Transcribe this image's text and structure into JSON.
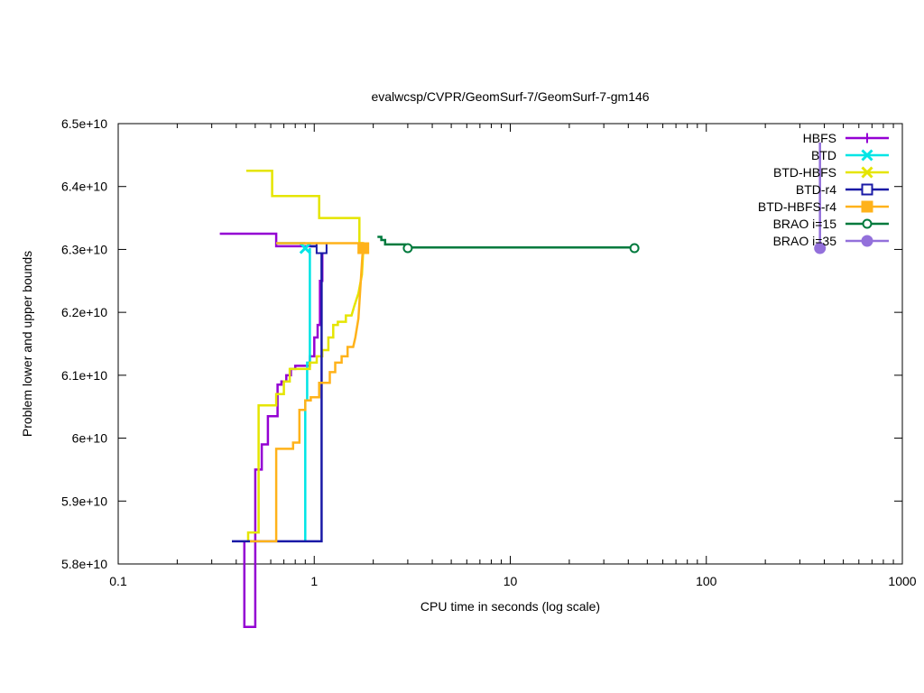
{
  "chart_data": {
    "type": "line",
    "title": "evalwcsp/CVPR/GeomSurf-7/GeomSurf-7-gm146",
    "xlabel": "CPU time in seconds (log scale)",
    "ylabel": "Problem lower and upper bounds",
    "x_scale": "log",
    "xlim": [
      0.1,
      1000
    ],
    "ylim": [
      58000000000,
      65000000000
    ],
    "x_ticks": [
      0.1,
      1,
      10,
      100,
      1000
    ],
    "x_tick_labels": [
      "0.1",
      "1",
      "10",
      "100",
      "1000"
    ],
    "y_ticks": [
      58000000000,
      59000000000,
      60000000000,
      61000000000,
      62000000000,
      63000000000,
      64000000000,
      65000000000
    ],
    "y_tick_labels": [
      "5.8e+10",
      "5.9e+10",
      "6e+10",
      "6.1e+10",
      "6.2e+10",
      "6.3e+10",
      "6.4e+10",
      "6.5e+10"
    ],
    "grid": false,
    "legend_position": "top-right",
    "series": [
      {
        "name": "HBFS",
        "color": "#9400d3",
        "marker": "plus",
        "upper": [
          [
            0.33,
            63250000000
          ],
          [
            0.64,
            63250000000
          ],
          [
            0.64,
            63050000000
          ],
          [
            1.1,
            63050000000
          ]
        ],
        "lower": [
          [
            0.44,
            58360000000
          ],
          [
            0.44,
            57000000000
          ],
          [
            0.5,
            57000000000
          ],
          [
            0.5,
            59500000000
          ],
          [
            0.54,
            59500000000
          ],
          [
            0.54,
            59900000000
          ],
          [
            0.58,
            59900000000
          ],
          [
            0.58,
            60350000000
          ],
          [
            0.65,
            60350000000
          ],
          [
            0.65,
            60850000000
          ],
          [
            0.68,
            60850000000
          ],
          [
            0.68,
            60900000000
          ],
          [
            0.72,
            60900000000
          ],
          [
            0.72,
            61000000000
          ],
          [
            0.76,
            61000000000
          ],
          [
            0.76,
            61100000000
          ],
          [
            0.8,
            61100000000
          ],
          [
            0.8,
            61150000000
          ],
          [
            0.95,
            61150000000
          ],
          [
            0.95,
            61300000000
          ],
          [
            1.0,
            61300000000
          ],
          [
            1.0,
            61600000000
          ],
          [
            1.04,
            61600000000
          ],
          [
            1.04,
            61800000000
          ],
          [
            1.07,
            61800000000
          ],
          [
            1.07,
            62500000000
          ],
          [
            1.1,
            62500000000
          ],
          [
            1.1,
            63020000000
          ]
        ],
        "marker_points": [
          [
            1.1,
            63020000000
          ]
        ]
      },
      {
        "name": "BTD",
        "color": "#00e5e5",
        "marker": "cross",
        "upper": [
          [
            0.64,
            63100000000
          ],
          [
            0.9,
            63100000000
          ]
        ],
        "lower": [
          [
            0.9,
            58360000000
          ],
          [
            0.9,
            60600000000
          ],
          [
            0.92,
            60600000000
          ],
          [
            0.92,
            61200000000
          ],
          [
            0.95,
            61200000000
          ],
          [
            0.95,
            63020000000
          ]
        ],
        "marker_points": [
          [
            0.9,
            63020000000
          ]
        ]
      },
      {
        "name": "BTD-HBFS",
        "color": "#e5e500",
        "marker": "cross",
        "upper": [
          [
            0.45,
            64250000000
          ],
          [
            0.61,
            64250000000
          ],
          [
            0.61,
            63850000000
          ],
          [
            1.06,
            63850000000
          ],
          [
            1.06,
            63500000000
          ],
          [
            1.7,
            63500000000
          ],
          [
            1.7,
            63100000000
          ],
          [
            1.8,
            63100000000
          ]
        ],
        "lower": [
          [
            0.46,
            58360000000
          ],
          [
            0.46,
            58500000000
          ],
          [
            0.52,
            58500000000
          ],
          [
            0.52,
            60520000000
          ],
          [
            0.64,
            60520000000
          ],
          [
            0.64,
            60700000000
          ],
          [
            0.7,
            60700000000
          ],
          [
            0.7,
            60900000000
          ],
          [
            0.75,
            60900000000
          ],
          [
            0.75,
            61100000000
          ],
          [
            0.95,
            61100000000
          ],
          [
            0.95,
            61200000000
          ],
          [
            1.03,
            61200000000
          ],
          [
            1.03,
            61300000000
          ],
          [
            1.1,
            61300000000
          ],
          [
            1.1,
            61400000000
          ],
          [
            1.18,
            61400000000
          ],
          [
            1.18,
            61600000000
          ],
          [
            1.25,
            61600000000
          ],
          [
            1.25,
            61800000000
          ],
          [
            1.32,
            61800000000
          ],
          [
            1.32,
            61850000000
          ],
          [
            1.45,
            61850000000
          ],
          [
            1.45,
            61950000000
          ],
          [
            1.55,
            61950000000
          ],
          [
            1.6,
            62100000000
          ],
          [
            1.68,
            62300000000
          ],
          [
            1.75,
            62600000000
          ],
          [
            1.78,
            63020000000
          ]
        ],
        "marker_points": [
          [
            1.78,
            63020000000
          ]
        ]
      },
      {
        "name": "BTD-r4",
        "color": "#1a1aa6",
        "marker": "square",
        "upper": [
          [
            0.95,
            63050000000
          ],
          [
            1.09,
            63050000000
          ]
        ],
        "lower": [
          [
            0.38,
            58360000000
          ],
          [
            1.09,
            58360000000
          ],
          [
            1.09,
            63020000000
          ]
        ],
        "marker_points": [
          [
            1.09,
            63020000000
          ]
        ]
      },
      {
        "name": "BTD-HBFS-r4",
        "color": "#ffb21a",
        "marker": "filled-square",
        "upper": [
          [
            0.64,
            63100000000
          ],
          [
            1.78,
            63100000000
          ]
        ],
        "lower": [
          [
            0.47,
            58360000000
          ],
          [
            0.64,
            58360000000
          ],
          [
            0.64,
            59830000000
          ],
          [
            0.78,
            59830000000
          ],
          [
            0.78,
            59930000000
          ],
          [
            0.84,
            59930000000
          ],
          [
            0.84,
            60450000000
          ],
          [
            0.9,
            60450000000
          ],
          [
            0.9,
            60600000000
          ],
          [
            0.96,
            60600000000
          ],
          [
            0.96,
            60650000000
          ],
          [
            1.06,
            60650000000
          ],
          [
            1.06,
            60880000000
          ],
          [
            1.2,
            60880000000
          ],
          [
            1.2,
            61050000000
          ],
          [
            1.28,
            61050000000
          ],
          [
            1.28,
            61200000000
          ],
          [
            1.38,
            61200000000
          ],
          [
            1.38,
            61300000000
          ],
          [
            1.48,
            61300000000
          ],
          [
            1.48,
            61450000000
          ],
          [
            1.58,
            61450000000
          ],
          [
            1.62,
            61600000000
          ],
          [
            1.68,
            61900000000
          ],
          [
            1.72,
            62400000000
          ],
          [
            1.76,
            62900000000
          ],
          [
            1.78,
            63020000000
          ]
        ],
        "marker_points": [
          [
            1.78,
            63020000000
          ]
        ]
      },
      {
        "name": "BRAO i=15",
        "color": "#007a3d",
        "marker": "circle",
        "upper": [
          [
            2.1,
            63200000000
          ],
          [
            2.2,
            63200000000
          ],
          [
            2.2,
            63150000000
          ],
          [
            2.3,
            63150000000
          ],
          [
            2.3,
            63080000000
          ],
          [
            2.9,
            63080000000
          ],
          [
            2.9,
            63030000000
          ],
          [
            43.0,
            63030000000
          ]
        ],
        "lower": [],
        "marker_points": [
          [
            3.0,
            63020000000
          ],
          [
            43.0,
            63020000000
          ]
        ]
      },
      {
        "name": "BRAO i=35",
        "color": "#9370db",
        "marker": "filled-circle",
        "upper": [
          [
            380.0,
            64700000000
          ],
          [
            380.0,
            63020000000
          ]
        ],
        "lower": [],
        "marker_points": [
          [
            380.0,
            63020000000
          ]
        ]
      }
    ]
  }
}
